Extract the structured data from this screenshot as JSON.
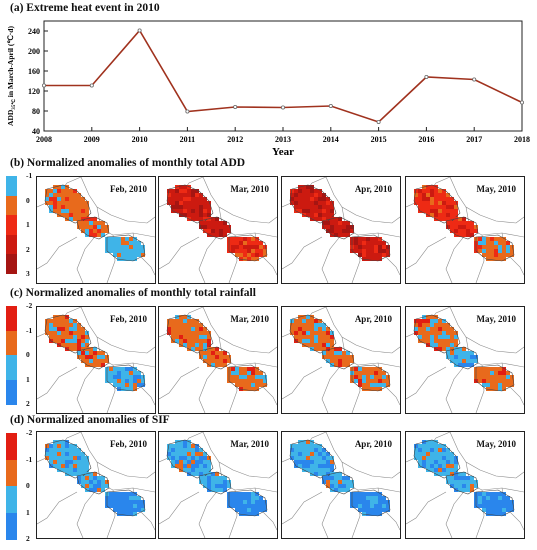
{
  "panel_a": {
    "title": "(a) Extreme heat event in 2010",
    "ylabel": "ADD",
    "ylabel_sub": "35℃",
    "ylabel_rest": " in March-April (℃·d)",
    "xlabel": "Year"
  },
  "chart_data": [
    {
      "type": "line",
      "title": "(a) Extreme heat event in 2010",
      "xlabel": "Year",
      "ylabel": "ADD35℃ in March-April (℃·d)",
      "x": [
        2008,
        2009,
        2010,
        2011,
        2012,
        2013,
        2014,
        2015,
        2016,
        2017,
        2018
      ],
      "series": [
        {
          "values": [
            131,
            131,
            241,
            79,
            88,
            87,
            90,
            58,
            148,
            143,
            97
          ]
        }
      ],
      "xlim": [
        2008,
        2018
      ],
      "ylim": [
        40,
        260
      ],
      "yticks": [
        40,
        80,
        120,
        160,
        200,
        240
      ],
      "grid": false,
      "line_color": "#a0321e"
    }
  ],
  "rows": [
    {
      "title": "(b) Normalized anomalies of monthly total ADD",
      "colorbar": {
        "ticks": [
          "-1",
          "0",
          "1",
          "2",
          "3"
        ],
        "colors": [
          "#3fb4e8",
          "#e86a1c",
          "#ee2a14",
          "#cc1a10",
          "#a51512"
        ]
      },
      "maps": [
        {
          "label": "Feb, 2010"
        },
        {
          "label": "Mar, 2010"
        },
        {
          "label": "Apr, 2010"
        },
        {
          "label": "May, 2010"
        }
      ]
    },
    {
      "title": "(c) Normalized anomalies of monthly total rainfall",
      "colorbar": {
        "ticks": [
          "-2",
          "-1",
          "0",
          "1",
          "2"
        ],
        "colors": [
          "#e21e12",
          "#e86a1c",
          "#3fb4e8",
          "#2a86ec"
        ]
      },
      "maps": [
        {
          "label": "Feb, 2010"
        },
        {
          "label": "Mar, 2010"
        },
        {
          "label": "Apr, 2010"
        },
        {
          "label": "May, 2010"
        }
      ]
    },
    {
      "title": "(d) Normalized anomalies of SIF",
      "colorbar": {
        "ticks": [
          "-2",
          "-1",
          "0",
          "1",
          "2"
        ],
        "colors": [
          "#e21e12",
          "#e86a1c",
          "#3fb4e8",
          "#2a86ec"
        ]
      },
      "maps": [
        {
          "label": "Feb, 2010"
        },
        {
          "label": "Mar, 2010"
        },
        {
          "label": "Apr, 2010"
        },
        {
          "label": "May, 2010"
        }
      ]
    }
  ]
}
